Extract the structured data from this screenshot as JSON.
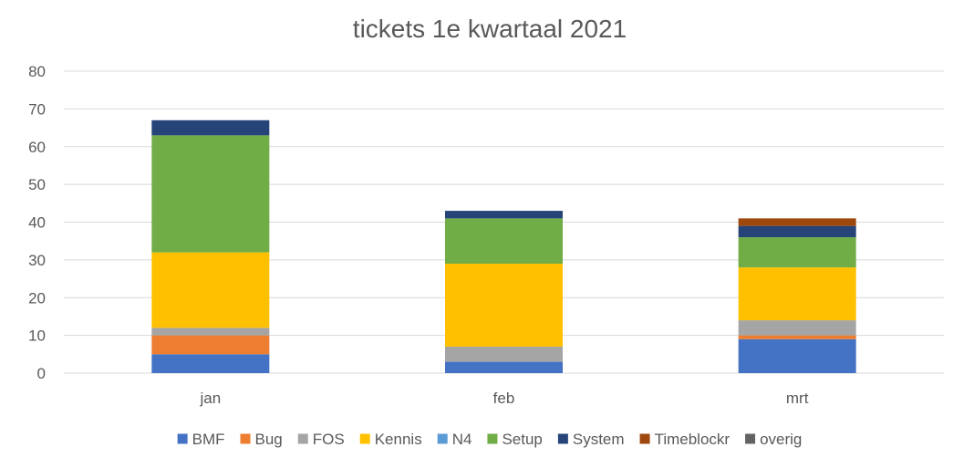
{
  "chart_data": {
    "type": "bar",
    "stacked": true,
    "title": "tickets 1e kwartaal 2021",
    "xlabel": "",
    "ylabel": "",
    "ylim": [
      0,
      80
    ],
    "yticks": [
      0,
      10,
      20,
      30,
      40,
      50,
      60,
      70,
      80
    ],
    "grid": true,
    "legend_position": "bottom",
    "categories": [
      "jan",
      "feb",
      "mrt"
    ],
    "series": [
      {
        "name": "BMF",
        "color": "#4472C4",
        "values": [
          5,
          3,
          9
        ]
      },
      {
        "name": "Bug",
        "color": "#ED7D31",
        "values": [
          5,
          0,
          1
        ]
      },
      {
        "name": "FOS",
        "color": "#A5A5A5",
        "values": [
          2,
          4,
          4
        ]
      },
      {
        "name": "Kennis",
        "color": "#FFC000",
        "values": [
          20,
          22,
          14
        ]
      },
      {
        "name": "N4",
        "color": "#5B9BD5",
        "values": [
          0,
          0,
          0
        ]
      },
      {
        "name": "Setup",
        "color": "#70AD47",
        "values": [
          31,
          12,
          8
        ]
      },
      {
        "name": "System",
        "color": "#264478",
        "values": [
          4,
          2,
          3
        ]
      },
      {
        "name": "Timeblockr",
        "color": "#9E480E",
        "values": [
          0,
          0,
          2
        ]
      },
      {
        "name": "overig",
        "color": "#636363",
        "values": [
          0,
          0,
          0
        ]
      }
    ]
  }
}
